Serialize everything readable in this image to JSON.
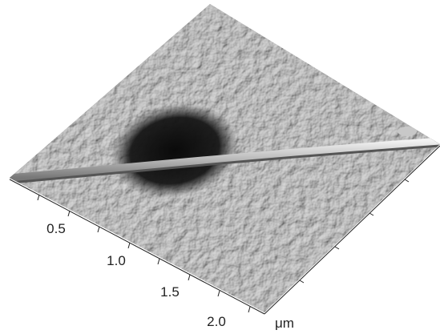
{
  "axis": {
    "ticks": [
      "0.5",
      "1.0",
      "1.5",
      "2.0"
    ],
    "unit": "μm"
  }
}
